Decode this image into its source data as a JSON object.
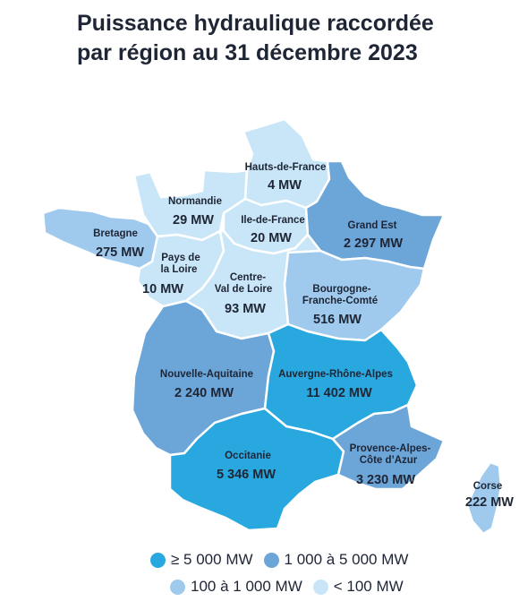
{
  "title": {
    "line1": "Puissance hydraulique raccordée",
    "line2": "par région au 31 décembre 2023"
  },
  "colors": {
    "class_ge_5000": "#29a8df",
    "class_1000_5000": "#6ca5d8",
    "class_100_1000": "#9fcaed",
    "class_lt_100": "#c8e6f8",
    "border": "#ffffff",
    "text": "#1e2535"
  },
  "regions": [
    {
      "id": "hauts-de-france",
      "name": "Hauts-de-France",
      "value": "4 MW",
      "mw": 4,
      "class": "lt_100"
    },
    {
      "id": "normandie",
      "name": "Normandie",
      "value": "29 MW",
      "mw": 29,
      "class": "lt_100"
    },
    {
      "id": "ile-de-france",
      "name": "Ile-de-France",
      "value": "20 MW",
      "mw": 20,
      "class": "lt_100"
    },
    {
      "id": "grand-est",
      "name": "Grand Est",
      "value": "2 297 MW",
      "mw": 2297,
      "class": "1000_5000"
    },
    {
      "id": "bretagne",
      "name": "Bretagne",
      "value": "275 MW",
      "mw": 275,
      "class": "100_1000"
    },
    {
      "id": "pays-de-la-loire",
      "name_lines": [
        "Pays de",
        "la Loire"
      ],
      "value": "10 MW",
      "mw": 10,
      "class": "lt_100"
    },
    {
      "id": "centre-val-de-loire",
      "name_lines": [
        "Centre-",
        "Val de Loire"
      ],
      "value": "93 MW",
      "mw": 93,
      "class": "lt_100"
    },
    {
      "id": "bourgogne-franche-comte",
      "name_lines": [
        "Bourgogne-",
        "Franche-Comté"
      ],
      "value": "516 MW",
      "mw": 516,
      "class": "100_1000"
    },
    {
      "id": "nouvelle-aquitaine",
      "name": "Nouvelle-Aquitaine",
      "value": "2 240 MW",
      "mw": 2240,
      "class": "1000_5000"
    },
    {
      "id": "auvergne-rhone-alpes",
      "name": "Auvergne-Rhône-Alpes",
      "value": "11 402 MW",
      "mw": 11402,
      "class": "ge_5000"
    },
    {
      "id": "occitanie",
      "name": "Occitanie",
      "value": "5 346 MW",
      "mw": 5346,
      "class": "ge_5000"
    },
    {
      "id": "provence-alpes-cote-d-azur",
      "name_lines": [
        "Provence-Alpes-",
        "Côte d’Azur"
      ],
      "value": "3 230 MW",
      "mw": 3230,
      "class": "1000_5000"
    },
    {
      "id": "corse",
      "name": "Corse",
      "value": "222 MW",
      "mw": 222,
      "class": "100_1000"
    }
  ],
  "legend": [
    {
      "label": "≥ 5 000 MW",
      "class": "ge_5000"
    },
    {
      "label": "1 000 à 5 000 MW",
      "class": "1000_5000"
    },
    {
      "label": "100 à 1 000 MW",
      "class": "100_1000"
    },
    {
      "label": "< 100 MW",
      "class": "lt_100"
    }
  ]
}
